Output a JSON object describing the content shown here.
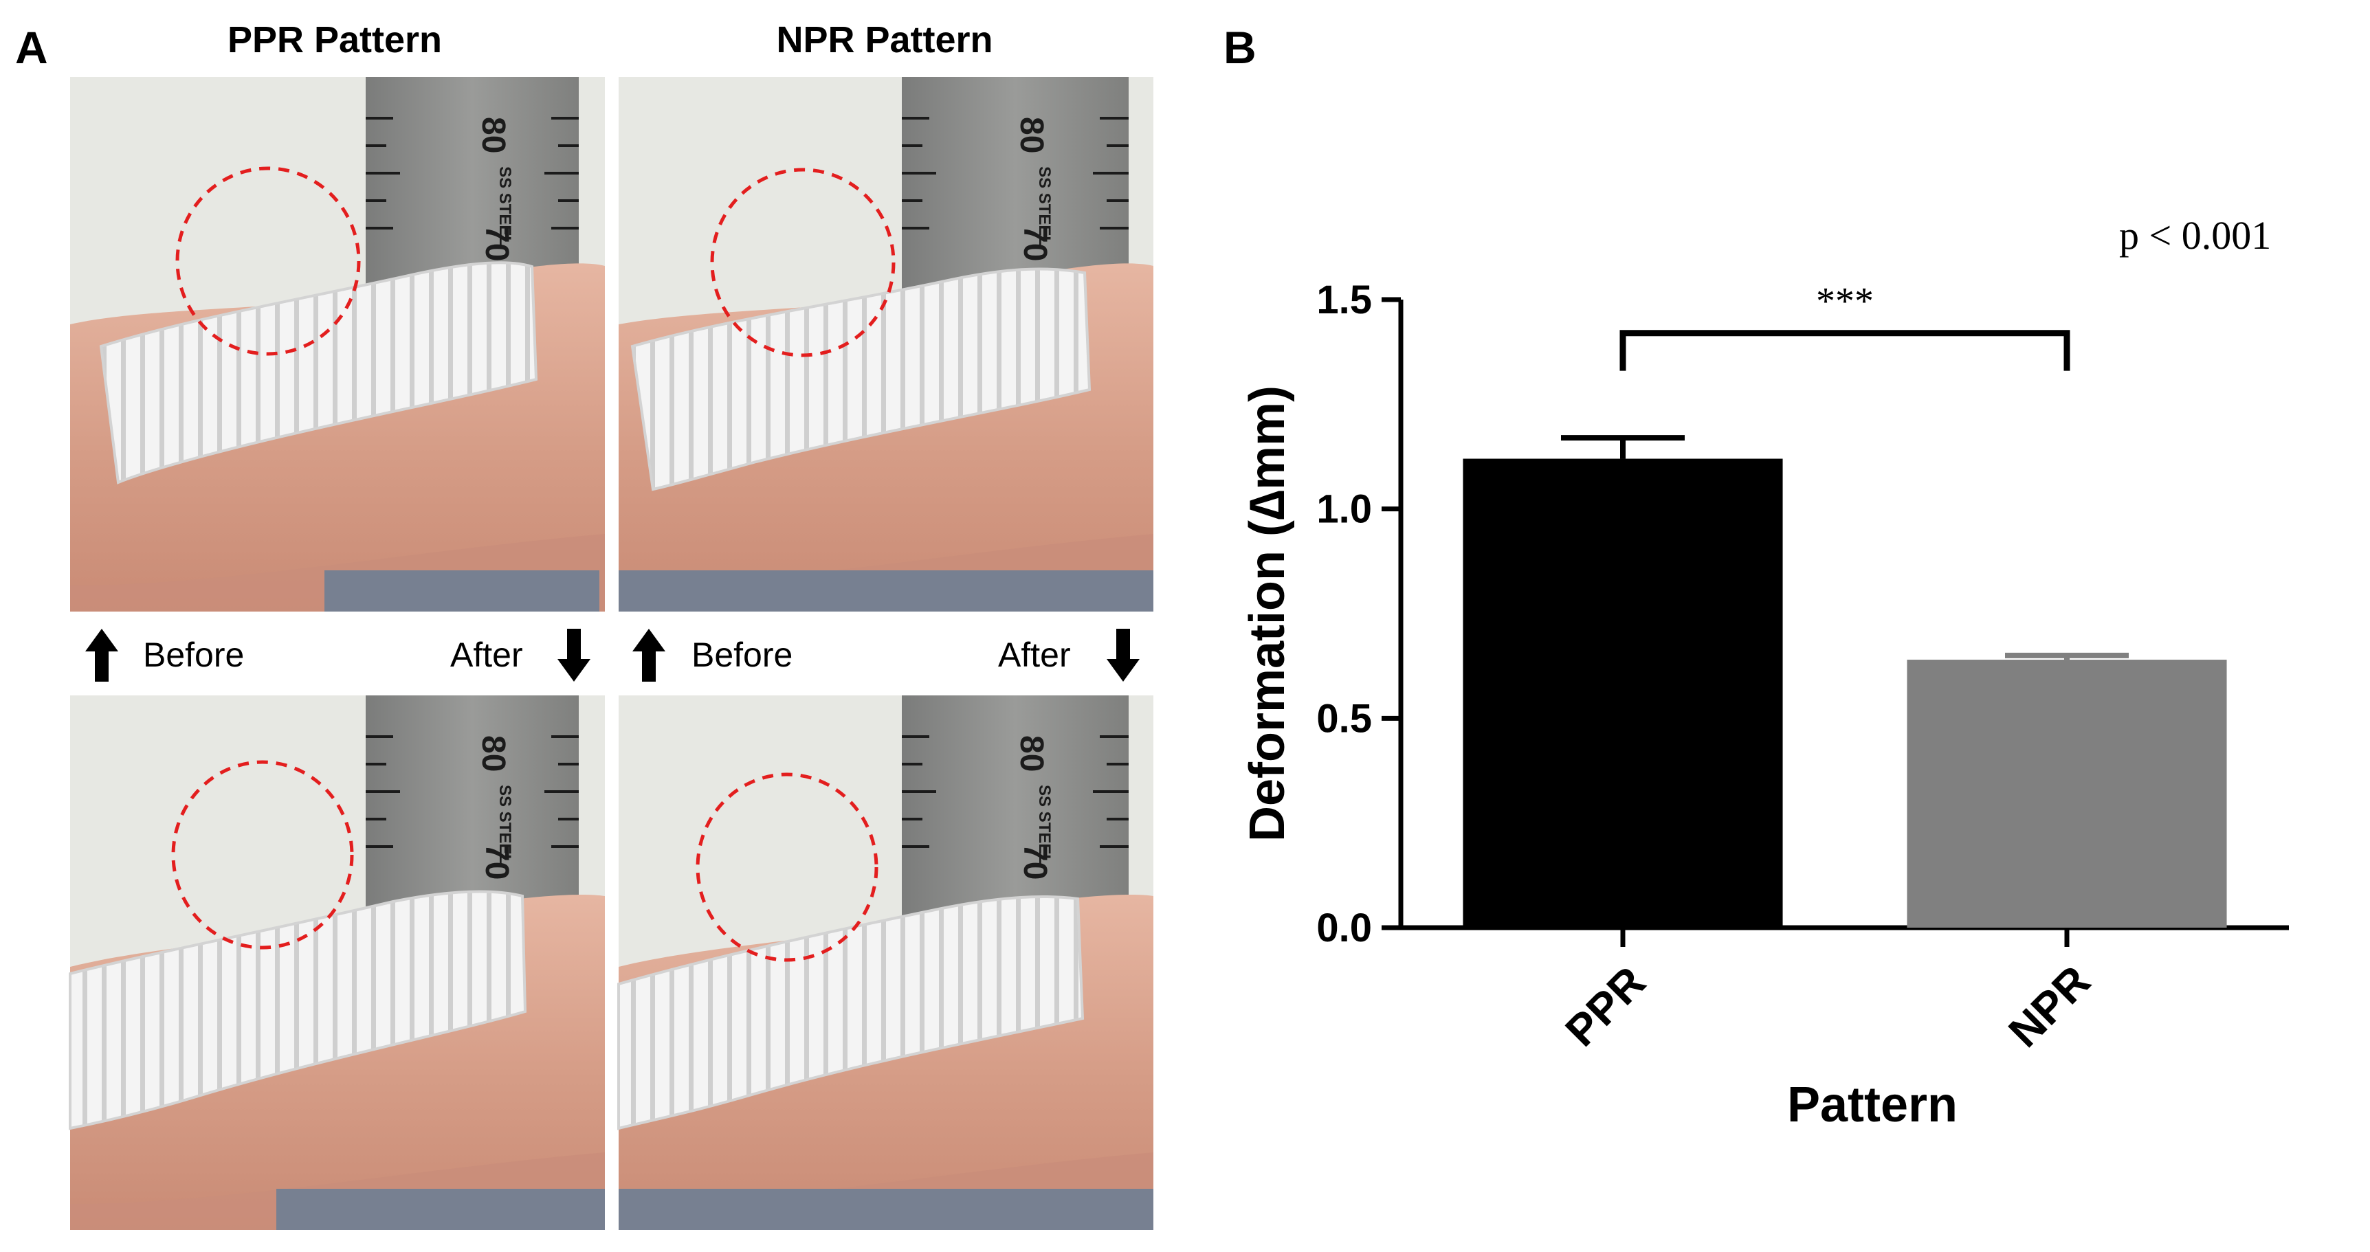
{
  "panel_a": {
    "label": "A",
    "columns": [
      {
        "title": "PPR Pattern"
      },
      {
        "title": "NPR Pattern"
      }
    ],
    "before_label": "Before",
    "after_label": "After",
    "ruler_numbers": {
      "left": "80",
      "right": "70"
    },
    "ruler_text": "SS STEEL",
    "colors": {
      "background_photo": "#e7e8e3",
      "skin": "#d9a690",
      "skin_shadow": "#be826e",
      "ruler": "#8a8a88",
      "base": "#778091",
      "circle": "#e31e1e",
      "bandage": "#f4f4f4"
    }
  },
  "panel_b": {
    "label": "B",
    "annotation": {
      "p_text": "p < 0.001",
      "significance": "***"
    }
  },
  "chart_data": {
    "type": "bar",
    "categories": [
      "PPR",
      "NPR"
    ],
    "values": [
      1.12,
      0.64
    ],
    "errors": [
      0.05,
      0.01
    ],
    "colors": [
      "#000000",
      "#808080"
    ],
    "xlabel": "Pattern",
    "ylabel": "Deformation (∆mm)",
    "ylim": [
      0.0,
      1.5
    ],
    "yticks": [
      "0.0",
      "0.5",
      "1.0",
      "1.5"
    ],
    "ytick_values": [
      0.0,
      0.5,
      1.0,
      1.5
    ],
    "grid": false,
    "legend": "none"
  }
}
